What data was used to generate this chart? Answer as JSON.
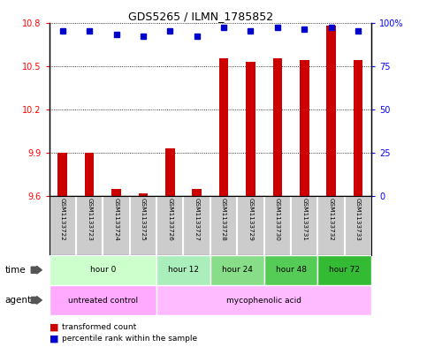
{
  "title": "GDS5265 / ILMN_1785852",
  "samples": [
    "GSM1133722",
    "GSM1133723",
    "GSM1133724",
    "GSM1133725",
    "GSM1133726",
    "GSM1133727",
    "GSM1133728",
    "GSM1133729",
    "GSM1133730",
    "GSM1133731",
    "GSM1133732",
    "GSM1133733"
  ],
  "red_values": [
    9.9,
    9.9,
    9.65,
    9.62,
    9.93,
    9.65,
    10.55,
    10.53,
    10.55,
    10.54,
    10.78,
    10.54
  ],
  "blue_values": [
    95,
    95,
    93,
    92,
    95,
    92,
    97,
    95,
    97,
    96,
    97,
    95
  ],
  "ylim_left": [
    9.6,
    10.8
  ],
  "ylim_right": [
    0,
    100
  ],
  "yticks_left": [
    9.6,
    9.9,
    10.2,
    10.5,
    10.8
  ],
  "yticks_right": [
    0,
    25,
    50,
    75,
    100
  ],
  "time_groups": [
    {
      "label": "hour 0",
      "start": 0,
      "end": 4,
      "color": "#ccffcc"
    },
    {
      "label": "hour 12",
      "start": 4,
      "end": 6,
      "color": "#aaeebb"
    },
    {
      "label": "hour 24",
      "start": 6,
      "end": 8,
      "color": "#88dd88"
    },
    {
      "label": "hour 48",
      "start": 8,
      "end": 10,
      "color": "#55cc55"
    },
    {
      "label": "hour 72",
      "start": 10,
      "end": 12,
      "color": "#33bb33"
    }
  ],
  "agent_groups": [
    {
      "label": "untreated control",
      "start": 0,
      "end": 4,
      "color": "#ffaaff"
    },
    {
      "label": "mycophenolic acid",
      "start": 4,
      "end": 12,
      "color": "#ffbbff"
    }
  ],
  "bar_color": "#cc0000",
  "dot_color": "#0000cc",
  "sample_bg": "#cccccc",
  "background_color": "#ffffff",
  "grid_color": "#888888",
  "row_label_time": "time",
  "row_label_agent": "agent",
  "legend_red": "transformed count",
  "legend_blue": "percentile rank within the sample"
}
